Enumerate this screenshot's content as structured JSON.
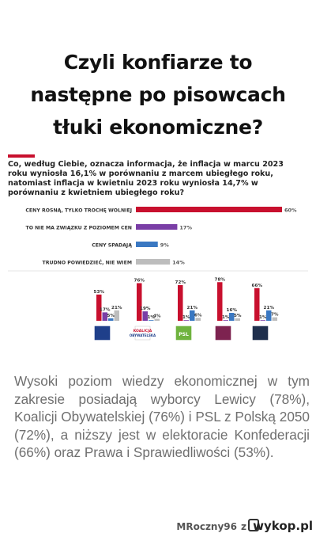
{
  "headline": {
    "line1": "Czyli konfiarze to",
    "line2": "następne po pisowcach",
    "line3": "tłuki ekonomiczne?"
  },
  "question": "Co, według Ciebie, oznacza informacja, że inflacja w marcu 2023 roku wyniosła 16,1% w porównaniu z marcem ubiegłego roku, natomiast inflacja w kwietniu 2023 roku wyniosła 14,7% w porównaniu z kwietniem ubiegłego roku?",
  "chart_data": [
    {
      "type": "bar",
      "orientation": "horizontal",
      "categories": [
        "CENY ROSNĄ, TYLKO TROCHĘ WOLNIEJ",
        "TO NIE MA ZWIĄZKU Z POZIOMEM CEN",
        "CENY SPADAJĄ",
        "TRUDNO POWIEDZIEĆ, NIE WIEM"
      ],
      "values": [
        60,
        17,
        9,
        14
      ],
      "value_labels": [
        "60%",
        "17%",
        "9%",
        "14%"
      ],
      "colors": [
        "#c8102e",
        "#7a3ea6",
        "#3a78c2",
        "#bdbdbd"
      ],
      "xlim": [
        0,
        60
      ]
    },
    {
      "type": "bar",
      "orientation": "grouped",
      "groups": [
        "PiS",
        "Koalicja Obywatelska",
        "PSL",
        "Lewica",
        "Konfederacja"
      ],
      "series": [
        {
          "values": [
            53,
            76,
            72,
            78,
            66
          ],
          "labels": [
            "53%",
            "76%",
            "72%",
            "78%",
            "66%"
          ]
        },
        {
          "values": [
            17,
            19,
            1,
            1,
            1
          ],
          "labels": [
            "17%",
            "19%",
            "1%",
            "1%",
            "1%"
          ]
        },
        {
          "values": [
            5,
            1,
            21,
            16,
            21
          ],
          "labels": [
            "5%",
            "1%",
            "21%",
            "16%",
            "21%"
          ]
        },
        {
          "values": [
            21,
            4,
            6,
            5,
            7
          ],
          "labels": [
            "21%",
            "4%",
            "6%",
            "5%",
            "7%"
          ]
        }
      ],
      "series_colors": [
        "#c8102e",
        "#7a3ea6",
        "#3a78c2",
        "#bdbdbd"
      ],
      "ylim": [
        0,
        80
      ],
      "logo_texts": [
        "",
        "KOALICJA OBYWATELSKA",
        "PSL",
        "",
        ""
      ],
      "logo_colors": [
        "#1f3f8a",
        "#ffffff",
        "#6fb33f",
        "#7d2350",
        "#1f2f4d"
      ]
    }
  ],
  "note": "Wysoki poziom wiedzy ekonomicznej w tym zakresie posiadają wyborcy Lewicy (78%), Koalicji Obywatelskiej (76%) i PSL z Polską 2050 (72%), a niższy jest w elektoracie Konfederacji (66%) oraz Prawa i Sprawiedliwości (53%).",
  "footer": {
    "user": "MRoczny96",
    "z": "z",
    "logo": "wykop.pl"
  }
}
